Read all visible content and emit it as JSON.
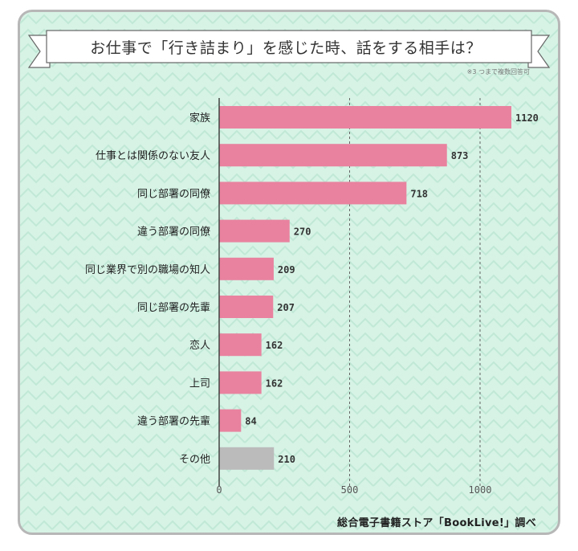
{
  "title": "お仕事で「行き詰まり」を感じた時、話をする相手は？",
  "note": "※3 つまで複数回答可",
  "credit": "総合電子書籍ストア「BookLive!」調べ",
  "colors": {
    "background": "#d6f3e6",
    "bar": "#e8829f",
    "other_bar": "#bbbbbb",
    "frame": "#b7b7b7"
  },
  "chart_data": {
    "type": "bar",
    "orientation": "horizontal",
    "categories": [
      "家族",
      "仕事とは関係のない友人",
      "同じ部署の同僚",
      "違う部署の同僚",
      "同じ業界で別の職場の知人",
      "同じ部署の先輩",
      "恋人",
      "上司",
      "違う部署の先輩",
      "その他"
    ],
    "values": [
      1120,
      873,
      718,
      270,
      209,
      207,
      162,
      162,
      84,
      210
    ],
    "value_labels": [
      "1120",
      "873",
      "718",
      "270",
      "209",
      "207",
      "162",
      "162",
      "84",
      "210"
    ],
    "xlim": [
      0,
      1200
    ],
    "xticks": [
      0,
      500,
      1000
    ],
    "xtick_labels": [
      "0",
      "500",
      "1000"
    ],
    "grid": true,
    "highlight_gray": [
      "その他"
    ]
  }
}
